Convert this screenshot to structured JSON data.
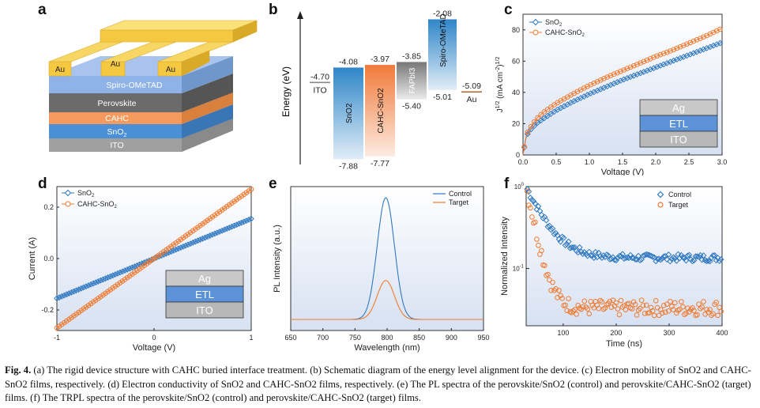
{
  "panels": {
    "a": {
      "label": "a",
      "layers": [
        "Au",
        "Au",
        "Au",
        "Spiro-OMeTAD",
        "Perovskite",
        "CAHC",
        "SnO",
        "ITO"
      ]
    },
    "b": {
      "label": "b",
      "ylabel": "Energy (eV)",
      "materials": [
        {
          "name": "ITO",
          "top": "-4.70",
          "color": "#888888"
        },
        {
          "name": "SnO2",
          "top": "-4.08",
          "bottom": "-7.88",
          "color": "#2f86c8"
        },
        {
          "name": "CAHC-SnO2",
          "top": "-3.97",
          "bottom": "-7.77",
          "color": "#f07a3a"
        },
        {
          "name": "FAPbI3",
          "top": "-3.85",
          "bottom": "-5.40",
          "color": "#777777"
        },
        {
          "name": "Spiro-OMeTAD",
          "top": "-2.08",
          "bottom": "-5.01",
          "color": "#2f86c8"
        },
        {
          "name": "Au",
          "top": "-5.09",
          "color": "#b0642a"
        }
      ]
    },
    "c": {
      "label": "c",
      "legend": [
        "SnO",
        "CAHC-SnO"
      ],
      "stack": [
        "Ag",
        "ETL",
        "ITO"
      ]
    },
    "d": {
      "label": "d",
      "legend": [
        "SnO",
        "CAHC-SnO"
      ],
      "stack": [
        "Ag",
        "ETL",
        "ITO"
      ]
    },
    "e": {
      "label": "e",
      "legend": [
        "Control",
        "Target"
      ]
    },
    "f": {
      "label": "f",
      "legend": [
        "Control",
        "Target"
      ]
    }
  },
  "chart_data": [
    {
      "panel": "c",
      "type": "line",
      "xlabel": "Voltage (V)",
      "ylabel": "J1/2 (mA cm-2)1/2",
      "xlim": [
        0,
        3.0
      ],
      "ylim": [
        0,
        90
      ],
      "xticks": [
        "0.0",
        "0.5",
        "1.0",
        "1.5",
        "2.0",
        "2.5",
        "3.0"
      ],
      "yticks": [
        "0",
        "20",
        "40",
        "60",
        "80"
      ],
      "series": [
        {
          "name": "SnO2",
          "color": "#2f78c0",
          "marker": "diamond",
          "x": [
            0.0,
            0.05,
            0.1,
            0.2,
            0.3,
            0.5,
            0.75,
            1.0,
            1.25,
            1.5,
            1.75,
            2.0,
            2.25,
            2.5,
            2.75,
            3.0
          ],
          "y": [
            0,
            12,
            15.5,
            20,
            23,
            28.5,
            34,
            39,
            43.5,
            48,
            52,
            56,
            60,
            64,
            68,
            72
          ]
        },
        {
          "name": "CAHC-SnO2",
          "color": "#f07a30",
          "marker": "circle",
          "x": [
            0.0,
            0.05,
            0.1,
            0.2,
            0.3,
            0.5,
            0.75,
            1.0,
            1.25,
            1.5,
            1.75,
            2.0,
            2.25,
            2.5,
            2.75,
            3.0
          ],
          "y": [
            0,
            13,
            17,
            23,
            27,
            33,
            39,
            44.5,
            49.5,
            54,
            58.5,
            63,
            67,
            71.5,
            76,
            81
          ]
        }
      ]
    },
    {
      "panel": "d",
      "type": "line",
      "xlabel": "Voltage (V)",
      "ylabel": "Current (A)",
      "xlim": [
        -1,
        1
      ],
      "ylim": [
        -0.28,
        0.28
      ],
      "xticks": [
        "-1",
        "0",
        "1"
      ],
      "yticks": [
        "-0.2",
        "0.0",
        "0.2"
      ],
      "series": [
        {
          "name": "SnO2",
          "color": "#2f78c0",
          "marker": "diamond",
          "x": [
            -1,
            1
          ],
          "y": [
            -0.155,
            0.155
          ]
        },
        {
          "name": "CAHC-SnO2",
          "color": "#f07a30",
          "marker": "circle",
          "x": [
            -1,
            1
          ],
          "y": [
            -0.27,
            0.27
          ]
        }
      ]
    },
    {
      "panel": "e",
      "type": "line",
      "xlabel": "Wavelength (nm)",
      "ylabel": "PL Intensity (a.u.)",
      "xlim": [
        650,
        950
      ],
      "xticks": [
        "650",
        "700",
        "750",
        "800",
        "850",
        "900",
        "950"
      ],
      "series": [
        {
          "name": "Control",
          "color": "#2f78c0",
          "peak_x": 798,
          "peak_height": 1.0
        },
        {
          "name": "Target",
          "color": "#f07a30",
          "peak_x": 798,
          "peak_height": 0.32
        }
      ]
    },
    {
      "panel": "f",
      "type": "scatter",
      "xlabel": "Time (ns)",
      "ylabel": "Normalized Intensity",
      "xlim": [
        30,
        400
      ],
      "ylog": true,
      "ylim": [
        0.02,
        1.0
      ],
      "xticks": [
        "100",
        "200",
        "300",
        "400"
      ],
      "yticks": [
        "10-1",
        "100"
      ],
      "series": [
        {
          "name": "Control",
          "color": "#2f78c0",
          "marker": "diamond",
          "floor": 0.135,
          "amp": 0.8,
          "tau": 30
        },
        {
          "name": "Target",
          "color": "#f07a30",
          "marker": "circle",
          "floor": 0.033,
          "amp": 0.85,
          "tau": 14
        }
      ]
    }
  ],
  "caption": {
    "fig": "Fig. 4.",
    "text": "(a) The rigid device structure with CAHC buried interface treatment. (b) Schematic diagram of the energy level alignment for the device. (c) Electron mobility of SnO2 and CAHC-SnO2 films, respectively. (d) Electron conductivity of SnO2 and CAHC-SnO2 films, respectively. (e) The PL spectra of the perovskite/SnO2 (control) and perovskite/CAHC-SnO2 (target) films. (f) The TRPL spectra of the perovskite/SnO2 (control) and perovskite/CAHC-SnO2 (target) films."
  }
}
